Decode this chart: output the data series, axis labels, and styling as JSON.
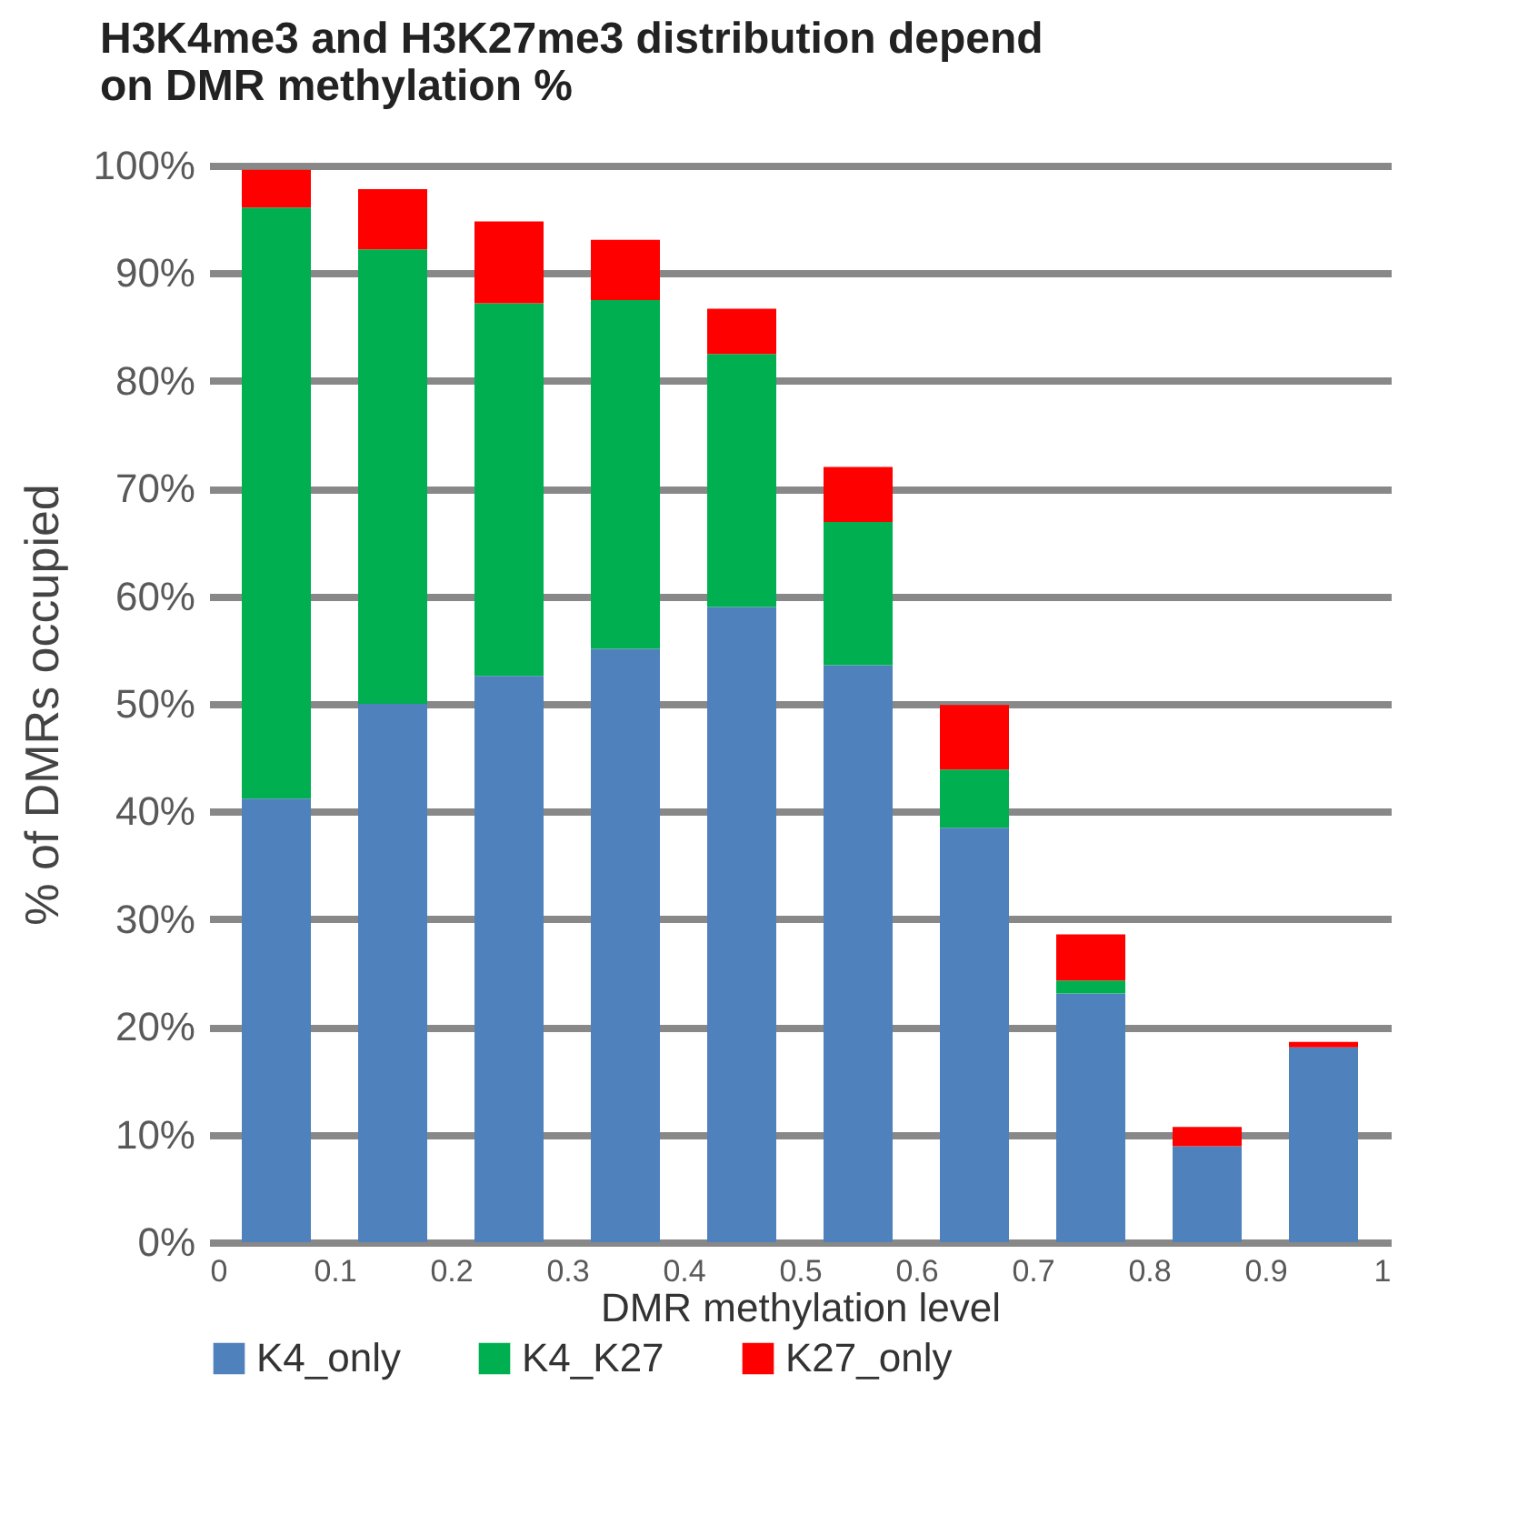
{
  "chart_data": {
    "type": "bar",
    "title": "H3K4me3 and H3K27me3 distribution depend on DMR methylation %",
    "xlabel": "DMR methylation level",
    "ylabel": "% of DMRs occupied",
    "x": [
      0.05,
      0.15,
      0.25,
      0.35,
      0.45,
      0.55,
      0.65,
      0.75,
      0.85,
      0.95
    ],
    "stacked": true,
    "series": [
      {
        "name": "K4_only",
        "color": "#4f81bd",
        "values": [
          41.2,
          50,
          52.6,
          55.1,
          59,
          53.6,
          38.5,
          23.1,
          8.9,
          18.1
        ]
      },
      {
        "name": "K4_K27",
        "color": "#00b050",
        "values": [
          54.9,
          42.2,
          34.6,
          32.4,
          23.5,
          13.3,
          5.4,
          1.2,
          0,
          0
        ]
      },
      {
        "name": "K27_only",
        "color": "#ff0000",
        "values": [
          3.5,
          5.6,
          7.6,
          5.6,
          4.2,
          5.1,
          6,
          4.3,
          1.8,
          0.5
        ]
      }
    ],
    "xlim": [
      0,
      1
    ],
    "xticks": [
      0,
      0.1,
      0.2,
      0.3,
      0.4,
      0.5,
      0.6,
      0.7,
      0.8,
      0.9,
      1
    ],
    "ylim": [
      0,
      100
    ],
    "yticks": [
      {
        "value": 0,
        "label": "0%"
      },
      {
        "value": 10,
        "label": "10%"
      },
      {
        "value": 20,
        "label": "20%"
      },
      {
        "value": 30,
        "label": "30%"
      },
      {
        "value": 40,
        "label": "40%"
      },
      {
        "value": 50,
        "label": "50%"
      },
      {
        "value": 60,
        "label": "60%"
      },
      {
        "value": 70,
        "label": "70%"
      },
      {
        "value": 80,
        "label": "80%"
      },
      {
        "value": 90,
        "label": "90%"
      },
      {
        "value": 100,
        "label": "100%"
      }
    ],
    "grid": "y",
    "legend": "bottom"
  }
}
